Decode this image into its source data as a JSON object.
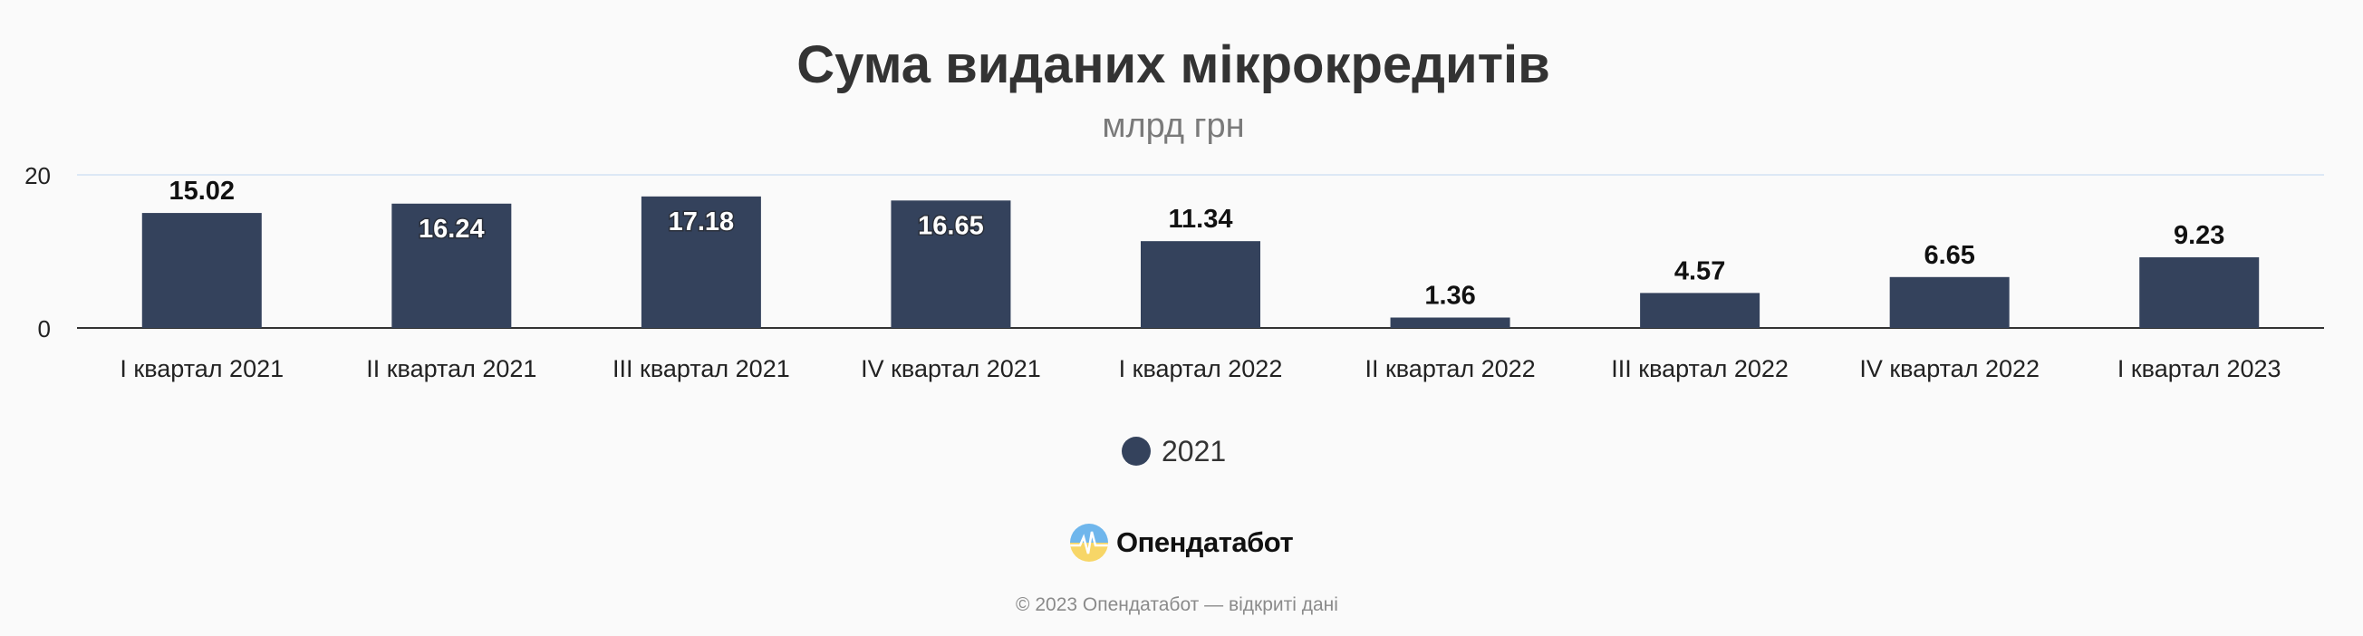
{
  "chart_data": {
    "type": "bar",
    "title": "Сума виданих мікрокредитів",
    "subtitle": "млрд грн",
    "categories": [
      "I квартал 2021",
      "II квартал 2021",
      "III квартал 2021",
      "IV квартал 2021",
      "I квартал 2022",
      "II квартал 2022",
      "III квартал 2022",
      "IV квартал 2022",
      "I квартал 2023"
    ],
    "series": [
      {
        "name": "2021",
        "values": [
          15.02,
          16.24,
          17.18,
          16.65,
          11.34,
          1.36,
          4.57,
          6.65,
          9.23
        ]
      }
    ],
    "value_labels": [
      "15.02",
      "16.24",
      "17.18",
      "16.65",
      "11.34",
      "1.36",
      "4.57",
      "6.65",
      "9.23"
    ],
    "y_ticks": [
      "0",
      "20"
    ],
    "ylim": [
      0,
      20
    ],
    "grid": true,
    "legend_position": "bottom-center",
    "colors": {
      "bar": "#34425c",
      "grid": "#dce8f5",
      "axis": "#333333"
    }
  },
  "brand": {
    "name": "Опендатабот",
    "logo_icon": "opendatabot-logo-icon"
  },
  "footer": {
    "note": "© 2023 Опендатабот — відкриті дані"
  }
}
